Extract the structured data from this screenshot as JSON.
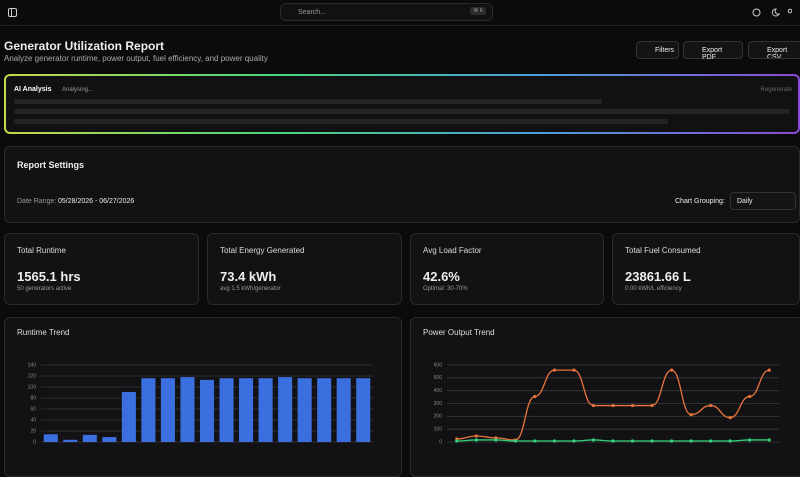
{
  "header": {
    "search": "Search...",
    "shortcut": "⌘ K"
  },
  "page": {
    "title": "Generator Utilization Report",
    "subtitle": "Analyze generator runtime, power output, fuel efficiency, and power quality",
    "actions": [
      "Filters",
      "Export PDF",
      "Export CSV"
    ]
  },
  "ai_analysis": {
    "title": "AI Analysis",
    "status": "Analysing...",
    "action": "Regenerate"
  },
  "report_settings": {
    "title": "Report Settings",
    "date_range_label": "Date Range:",
    "date_range": "05/28/2026 - 06/27/2026",
    "grouping_label": "Chart Grouping:",
    "grouping": "Daily"
  },
  "cards": [
    {
      "title": "Total Runtime",
      "value": "1565.1 hrs",
      "note": "50 generators active"
    },
    {
      "title": "Total Energy Generated",
      "value": "73.4 kWh",
      "note": "avg 1.5 kWh/generator"
    },
    {
      "title": "Avg Load Factor",
      "value": "42.6%",
      "note": "Optimal: 30-70%"
    },
    {
      "title": "Total Fuel Consumed",
      "value": "23861.66 L",
      "note": "0.00 kWh/L efficiency"
    }
  ],
  "chart_data": [
    {
      "type": "bar",
      "title": "Runtime Trend",
      "categories": [
        null,
        null,
        null,
        null,
        null,
        null,
        null,
        null,
        null,
        null,
        null,
        null,
        null,
        null,
        null,
        null,
        null
      ],
      "values": [
        14,
        4,
        13,
        9,
        91,
        116,
        116,
        118,
        113,
        116,
        116,
        116,
        118,
        116,
        116,
        116,
        116
      ],
      "color": "#3b6fe0",
      "ylim": [
        0,
        140
      ],
      "yticks": [
        0,
        20,
        40,
        60,
        80,
        100,
        120,
        140
      ],
      "grid": true
    },
    {
      "type": "line",
      "title": "Power Output Trend",
      "categories": [
        null,
        null,
        null,
        null,
        null,
        null,
        null,
        null,
        null,
        null,
        null,
        null,
        null,
        null,
        null,
        null,
        null
      ],
      "series": [
        {
          "color": "#e8743b",
          "values": [
            24,
            47,
            32,
            16,
            355,
            560,
            560,
            284,
            284,
            284,
            284,
            560,
            213,
            284,
            190,
            355,
            560
          ]
        },
        {
          "color": "#34d27a",
          "values": [
            8,
            16,
            16,
            8,
            8,
            8,
            8,
            16,
            8,
            8,
            8,
            8,
            8,
            8,
            8,
            16,
            16
          ]
        }
      ],
      "ylim": [
        0,
        600
      ],
      "yticks": [
        0,
        100,
        200,
        300,
        400,
        500,
        600
      ],
      "grid": true
    }
  ]
}
